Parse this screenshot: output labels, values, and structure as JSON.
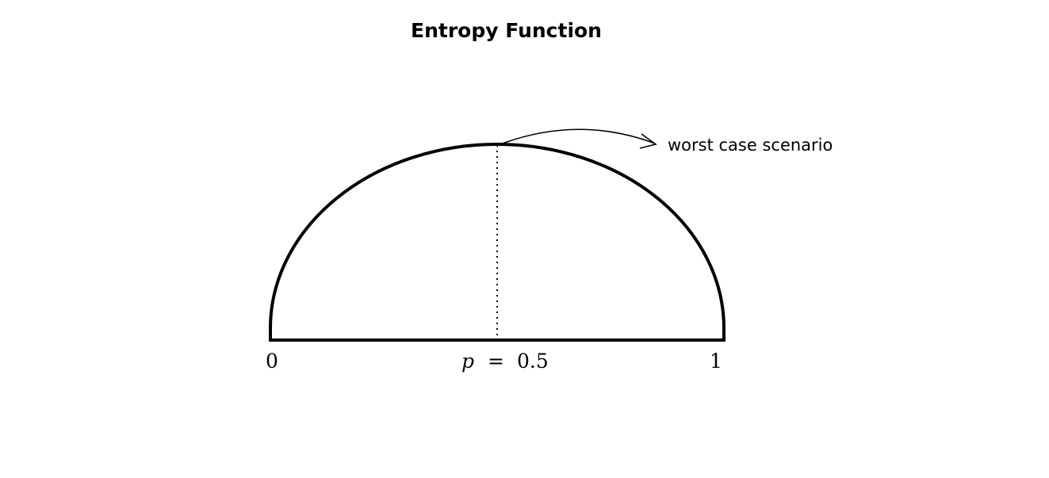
{
  "title": "Entropy Function",
  "annotation": "worst case scenario",
  "axis": {
    "left_label": "0",
    "right_label": "1",
    "mid_variable": "p",
    "mid_equals": "=",
    "mid_value": "0.5"
  },
  "colors": {
    "stroke": "#000000",
    "background": "#ffffff"
  }
}
